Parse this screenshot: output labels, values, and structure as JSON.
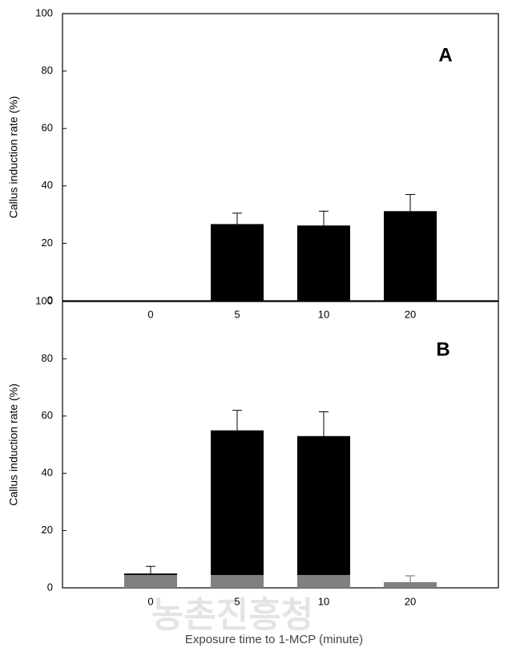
{
  "watermark": "농촌진흥청",
  "chart_data": [
    {
      "type": "bar",
      "panel_label": "A",
      "ylabel": "Callus induction rate (%)",
      "categories": [
        "0",
        "5",
        "10",
        "20"
      ],
      "series": [
        {
          "color": "#000000",
          "values": [
            0,
            26.7,
            26.2,
            31.2
          ],
          "errors": [
            null,
            3.8,
            5,
            5.8
          ]
        }
      ],
      "ylim": [
        0,
        100
      ],
      "yticks": [
        0,
        20,
        40,
        60,
        80,
        100
      ]
    },
    {
      "type": "bar",
      "panel_label": "B",
      "ylabel": "Callus induction rate (%)",
      "xlabel": "Exposure time to 1-MCP (minute)",
      "categories": [
        "0",
        "5",
        "10",
        "20"
      ],
      "series": [
        {
          "color": "#000000",
          "values": [
            5,
            55,
            53,
            null
          ],
          "errors": [
            2.5,
            7,
            8.5,
            null
          ]
        },
        {
          "color": "#808080",
          "values": [
            4.5,
            4.5,
            4.5,
            2
          ],
          "errors": [
            null,
            null,
            null,
            2.2
          ]
        }
      ],
      "ylim": [
        0,
        100
      ],
      "yticks": [
        0,
        20,
        40,
        60,
        80,
        100
      ]
    }
  ]
}
